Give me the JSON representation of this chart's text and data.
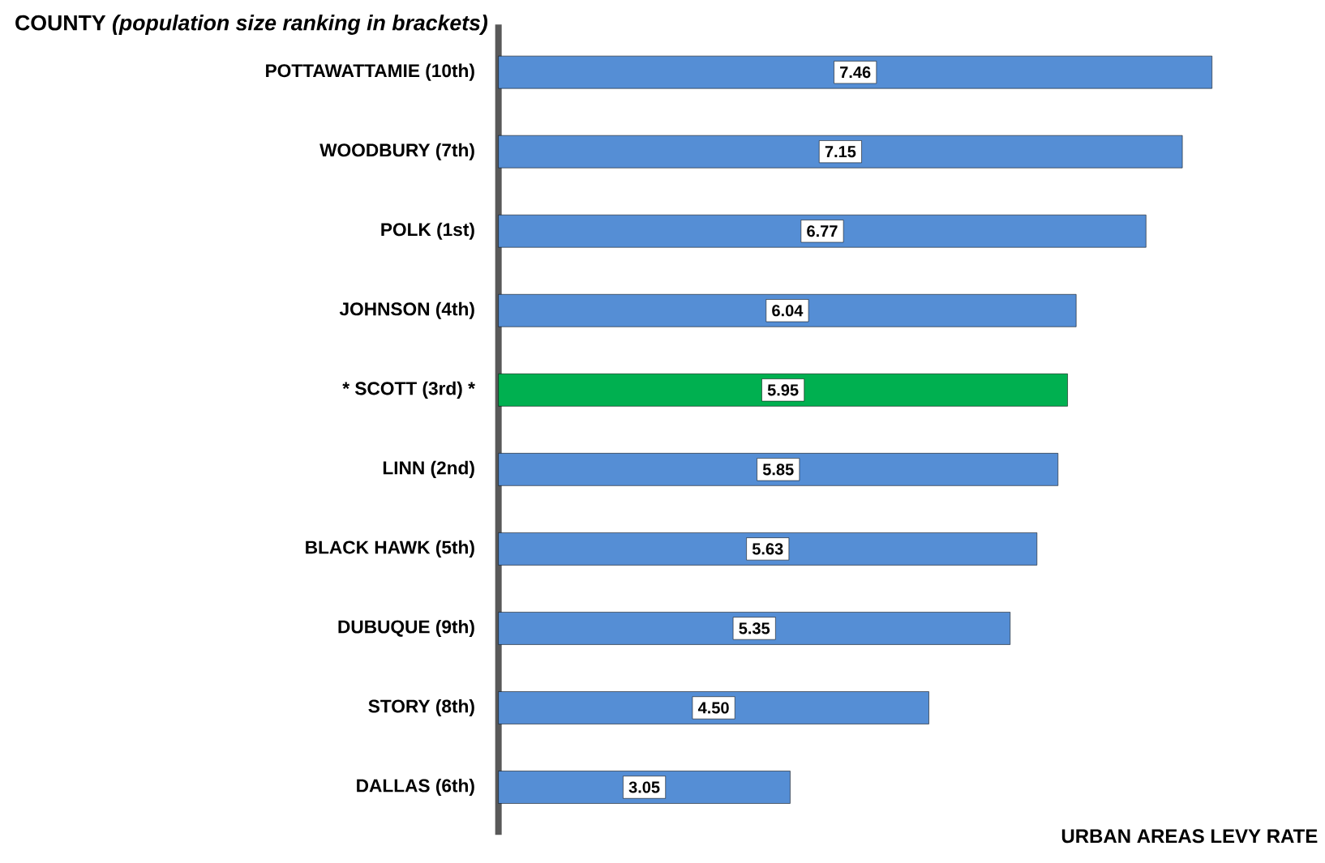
{
  "chart_data": {
    "type": "bar",
    "orientation": "horizontal",
    "ylabel": "COUNTY *(population size ranking in brackets)*",
    "xlabel": "URBAN AREAS LEVY RATE",
    "categories": [
      "POTTAWATTAMIE (10th)",
      "WOODBURY (7th)",
      "POLK (1st)",
      "JOHNSON (4th)",
      "*** SCOTT (3rd) ***",
      "LINN (2nd)",
      "BLACK HAWK (5th)",
      "DUBUQUE (9th)",
      "STORY (8th)",
      "DALLAS (6th)"
    ],
    "values": [
      7.46,
      7.15,
      6.77,
      6.04,
      5.95,
      5.85,
      5.63,
      5.35,
      4.5,
      3.05
    ],
    "value_labels": [
      "7.46",
      "7.15",
      "6.77",
      "6.04",
      "5.95",
      "5.85",
      "5.63",
      "5.35",
      "4.50",
      "3.05"
    ],
    "colors": [
      "#558ed5",
      "#558ed5",
      "#558ed5",
      "#558ed5",
      "#00b050",
      "#558ed5",
      "#558ed5",
      "#558ed5",
      "#558ed5",
      "#558ed5"
    ]
  }
}
